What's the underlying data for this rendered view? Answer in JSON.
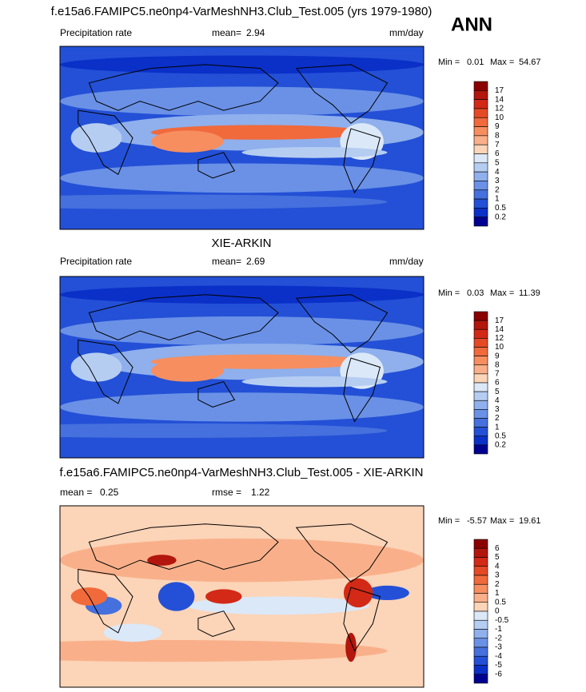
{
  "header": {
    "label": "ANN"
  },
  "panels": [
    {
      "title": "f.e15a6.FAMIPC5.ne0np4-VarMeshNH3.Club_Test.005 (yrs 1979-1980)",
      "field": "Precipitation rate",
      "mean_label": "mean=",
      "mean": 2.94,
      "units": "mm/day",
      "min_label": "Min =",
      "min": 0.01,
      "max_label": "Max =",
      "max": 54.67,
      "colorbar": {
        "labels": [
          17,
          14,
          12,
          10,
          9,
          8,
          7,
          6,
          5,
          4,
          3,
          2,
          1,
          0.5,
          0.2
        ],
        "colors": [
          "#8b0000",
          "#b2160c",
          "#d22a16",
          "#e54a26",
          "#f06a3c",
          "#f68e60",
          "#f9b08a",
          "#fcd4b8",
          "#dbe8f8",
          "#b6cdf2",
          "#8fb0ec",
          "#6a91e6",
          "#4570dd",
          "#2350d6",
          "#0a30c8",
          "#000090"
        ]
      }
    },
    {
      "title": "XIE-ARKIN",
      "field": "Precipitation rate",
      "mean_label": "mean=",
      "mean": 2.69,
      "units": "mm/day",
      "min_label": "Min =",
      "min": 0.03,
      "max_label": "Max =",
      "max": 11.39,
      "colorbar": {
        "labels": [
          17,
          14,
          12,
          10,
          9,
          8,
          7,
          6,
          5,
          4,
          3,
          2,
          1,
          0.5,
          0.2
        ],
        "colors": [
          "#8b0000",
          "#b2160c",
          "#d22a16",
          "#e54a26",
          "#f06a3c",
          "#f68e60",
          "#f9b08a",
          "#fcd4b8",
          "#dbe8f8",
          "#b6cdf2",
          "#8fb0ec",
          "#6a91e6",
          "#4570dd",
          "#2350d6",
          "#0a30c8",
          "#000090"
        ]
      }
    },
    {
      "title": "f.e15a6.FAMIPC5.ne0np4-VarMeshNH3.Club_Test.005 - XIE-ARKIN",
      "mean_label": "mean =",
      "mean": 0.25,
      "rmse_label": "rmse =",
      "rmse": 1.22,
      "min_label": "Min =",
      "min": -5.57,
      "max_label": "Max =",
      "max": 19.61,
      "colorbar": {
        "labels": [
          6,
          5,
          4,
          3,
          2,
          1,
          0.5,
          0,
          -0.5,
          -1,
          -2,
          -3,
          -4,
          -5,
          -6
        ],
        "colors": [
          "#8b0000",
          "#b2160c",
          "#d22a16",
          "#e54a26",
          "#f06a3c",
          "#f68e60",
          "#f9b08a",
          "#fcd4b8",
          "#dbe8f8",
          "#b6cdf2",
          "#8fb0ec",
          "#6a91e6",
          "#4570dd",
          "#2350d6",
          "#0a30c8",
          "#000090"
        ]
      }
    }
  ]
}
